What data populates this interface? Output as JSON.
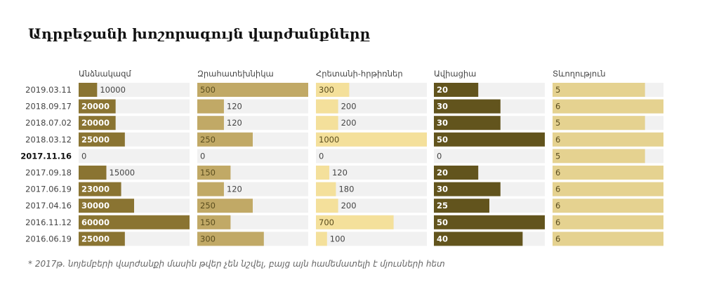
{
  "title": "Ադրբեջանի խոշորագույն վարժանքները",
  "footnote": "* 2017թ. նոյեմբերի վարժանքի մասին թվեր չեն նշվել, բայց այն համեմատելի է մյուսների հետ",
  "colors": {
    "track": "#f1f1f1",
    "manpower": "#8a7432",
    "armored": "#c1a966",
    "artillery": "#f4e09b",
    "aviation": "#62541d",
    "duration": "#e5d290"
  },
  "chart_data": {
    "type": "bar",
    "title": "Ադրբեջանի խոշորագույն վարժանքները",
    "categories": [
      "2019.03.11",
      "2018.09.17",
      "2018.07.02",
      "2018.03.12",
      "2017.11.16",
      "2017.09.18",
      "2017.06.19",
      "2017.04.16",
      "2016.11.12",
      "2016.06.19"
    ],
    "highlight_category": "2017.11.16",
    "series": [
      {
        "name": "Անձնակազմ",
        "color_key": "manpower",
        "max": 60000,
        "values": [
          10000,
          20000,
          20000,
          25000,
          0,
          15000,
          23000,
          30000,
          60000,
          25000
        ]
      },
      {
        "name": "Զրահատեխնիկա",
        "color_key": "armored",
        "max": 500,
        "values": [
          500,
          120,
          120,
          250,
          0,
          150,
          120,
          250,
          150,
          300
        ]
      },
      {
        "name": "Հրետանի-հրթիռներ",
        "color_key": "artillery",
        "max": 1000,
        "values": [
          300,
          200,
          200,
          1000,
          0,
          120,
          180,
          200,
          700,
          100
        ]
      },
      {
        "name": "Ավիացիա",
        "color_key": "aviation",
        "max": 50,
        "values": [
          20,
          30,
          30,
          50,
          0,
          20,
          30,
          25,
          50,
          40
        ]
      },
      {
        "name": "Տևողություն",
        "color_key": "duration",
        "max": 6,
        "values": [
          5,
          6,
          5,
          6,
          5,
          6,
          6,
          6,
          6,
          6
        ]
      }
    ]
  }
}
